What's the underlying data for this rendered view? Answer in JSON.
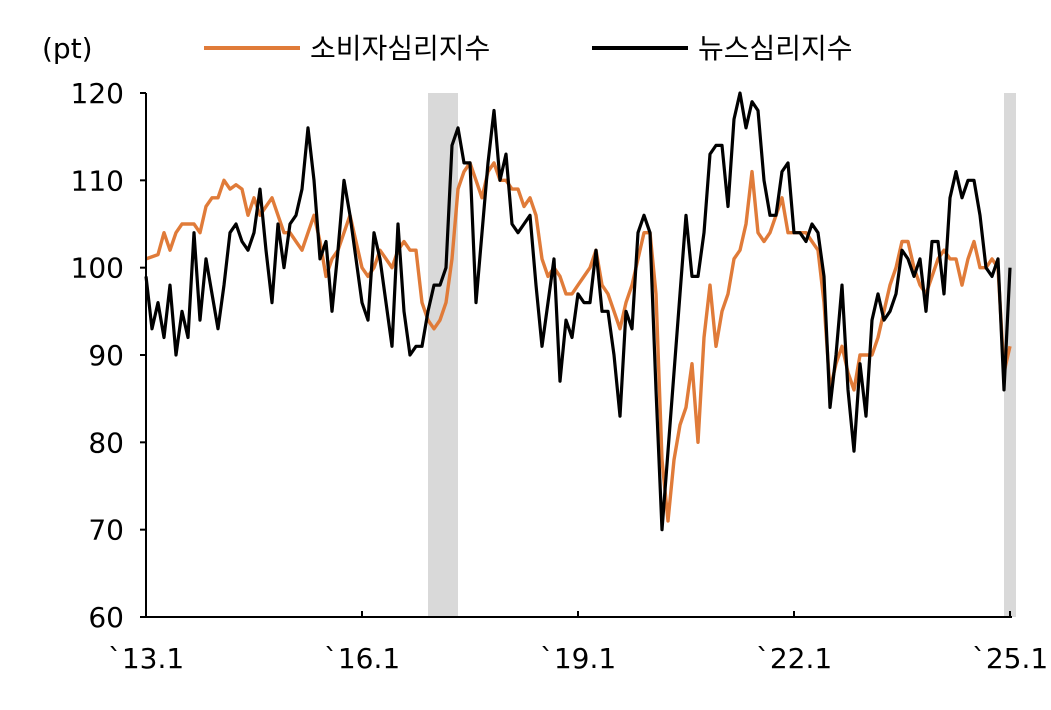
{
  "chart_data": {
    "type": "line",
    "unit_label": "(pt)",
    "ylim": [
      60,
      120
    ],
    "y_ticks": [
      60,
      70,
      80,
      90,
      100,
      110,
      120
    ],
    "x_start": "2013-01",
    "x_end": "2025-01",
    "x_ticks": [
      {
        "date": "2013-01",
        "label": "`13.1"
      },
      {
        "date": "2016-01",
        "label": "`16.1"
      },
      {
        "date": "2019-01",
        "label": "`19.1"
      },
      {
        "date": "2022-01",
        "label": "`22.1"
      },
      {
        "date": "2025-01",
        "label": "`25.1"
      }
    ],
    "shaded_periods": [
      {
        "start": "2016-12",
        "end": "2017-05"
      },
      {
        "start": "2024-12",
        "end": "2025-01"
      }
    ],
    "grid": false,
    "legend_position": "top",
    "series": [
      {
        "name": "소비자심리지수",
        "color": "#E07B39",
        "points": [
          [
            "2013-01",
            101
          ],
          [
            "2013-03",
            101.5
          ],
          [
            "2013-04",
            104
          ],
          [
            "2013-05",
            102
          ],
          [
            "2013-06",
            104
          ],
          [
            "2013-07",
            105
          ],
          [
            "2013-09",
            105
          ],
          [
            "2013-10",
            104
          ],
          [
            "2013-11",
            107
          ],
          [
            "2013-12",
            108
          ],
          [
            "2014-01",
            108
          ],
          [
            "2014-02",
            110
          ],
          [
            "2014-03",
            109
          ],
          [
            "2014-04",
            109.5
          ],
          [
            "2014-05",
            109
          ],
          [
            "2014-06",
            106
          ],
          [
            "2014-07",
            108
          ],
          [
            "2014-08",
            106
          ],
          [
            "2014-09",
            107
          ],
          [
            "2014-10",
            108
          ],
          [
            "2014-11",
            106
          ],
          [
            "2014-12",
            104
          ],
          [
            "2015-01",
            104
          ],
          [
            "2015-02",
            103
          ],
          [
            "2015-03",
            102
          ],
          [
            "2015-04",
            104
          ],
          [
            "2015-05",
            106
          ],
          [
            "2015-06",
            103
          ],
          [
            "2015-07",
            99
          ],
          [
            "2015-08",
            101
          ],
          [
            "2015-09",
            102
          ],
          [
            "2015-10",
            104
          ],
          [
            "2015-11",
            106
          ],
          [
            "2015-12",
            103
          ],
          [
            "2016-01",
            100
          ],
          [
            "2016-02",
            99
          ],
          [
            "2016-03",
            100
          ],
          [
            "2016-04",
            102
          ],
          [
            "2016-05",
            101
          ],
          [
            "2016-06",
            100
          ],
          [
            "2016-07",
            102
          ],
          [
            "2016-08",
            103
          ],
          [
            "2016-09",
            102
          ],
          [
            "2016-10",
            102
          ],
          [
            "2016-11",
            96
          ],
          [
            "2016-12",
            94
          ],
          [
            "2017-01",
            93
          ],
          [
            "2017-02",
            94
          ],
          [
            "2017-03",
            96
          ],
          [
            "2017-04",
            101
          ],
          [
            "2017-05",
            109
          ],
          [
            "2017-06",
            111
          ],
          [
            "2017-07",
            112
          ],
          [
            "2017-08",
            110
          ],
          [
            "2017-09",
            108
          ],
          [
            "2017-10",
            111
          ],
          [
            "2017-11",
            112
          ],
          [
            "2017-12",
            110
          ],
          [
            "2018-01",
            110
          ],
          [
            "2018-02",
            109
          ],
          [
            "2018-03",
            109
          ],
          [
            "2018-04",
            107
          ],
          [
            "2018-05",
            108
          ],
          [
            "2018-06",
            106
          ],
          [
            "2018-07",
            101
          ],
          [
            "2018-08",
            99
          ],
          [
            "2018-09",
            100
          ],
          [
            "2018-10",
            99
          ],
          [
            "2018-11",
            97
          ],
          [
            "2018-12",
            97
          ],
          [
            "2019-01",
            98
          ],
          [
            "2019-02",
            99
          ],
          [
            "2019-03",
            100
          ],
          [
            "2019-04",
            102
          ],
          [
            "2019-05",
            98
          ],
          [
            "2019-06",
            97
          ],
          [
            "2019-07",
            95
          ],
          [
            "2019-08",
            93
          ],
          [
            "2019-09",
            96
          ],
          [
            "2019-10",
            98
          ],
          [
            "2019-11",
            101
          ],
          [
            "2019-12",
            104
          ],
          [
            "2020-01",
            104
          ],
          [
            "2020-02",
            97
          ],
          [
            "2020-03",
            78
          ],
          [
            "2020-04",
            71
          ],
          [
            "2020-05",
            78
          ],
          [
            "2020-06",
            82
          ],
          [
            "2020-07",
            84
          ],
          [
            "2020-08",
            89
          ],
          [
            "2020-09",
            80
          ],
          [
            "2020-10",
            92
          ],
          [
            "2020-11",
            98
          ],
          [
            "2020-12",
            91
          ],
          [
            "2021-01",
            95
          ],
          [
            "2021-02",
            97
          ],
          [
            "2021-03",
            101
          ],
          [
            "2021-04",
            102
          ],
          [
            "2021-05",
            105
          ],
          [
            "2021-06",
            111
          ],
          [
            "2021-07",
            104
          ],
          [
            "2021-08",
            103
          ],
          [
            "2021-09",
            104
          ],
          [
            "2021-10",
            106
          ],
          [
            "2021-11",
            108
          ],
          [
            "2021-12",
            104
          ],
          [
            "2022-01",
            104
          ],
          [
            "2022-02",
            104
          ],
          [
            "2022-03",
            104
          ],
          [
            "2022-04",
            103
          ],
          [
            "2022-05",
            102
          ],
          [
            "2022-06",
            96
          ],
          [
            "2022-07",
            86
          ],
          [
            "2022-08",
            89
          ],
          [
            "2022-09",
            91
          ],
          [
            "2022-10",
            88
          ],
          [
            "2022-11",
            86
          ],
          [
            "2022-12",
            90
          ],
          [
            "2023-01",
            90
          ],
          [
            "2023-02",
            90
          ],
          [
            "2023-03",
            92
          ],
          [
            "2023-04",
            95
          ],
          [
            "2023-05",
            98
          ],
          [
            "2023-06",
            100
          ],
          [
            "2023-07",
            103
          ],
          [
            "2023-08",
            103
          ],
          [
            "2023-09",
            100
          ],
          [
            "2023-10",
            98
          ],
          [
            "2023-11",
            97
          ],
          [
            "2023-12",
            99
          ],
          [
            "2024-01",
            101
          ],
          [
            "2024-02",
            102
          ],
          [
            "2024-03",
            101
          ],
          [
            "2024-04",
            101
          ],
          [
            "2024-05",
            98
          ],
          [
            "2024-06",
            101
          ],
          [
            "2024-07",
            103
          ],
          [
            "2024-08",
            100
          ],
          [
            "2024-09",
            100
          ],
          [
            "2024-10",
            101
          ],
          [
            "2024-11",
            100
          ],
          [
            "2024-12",
            88
          ],
          [
            "2025-01",
            91
          ]
        ]
      },
      {
        "name": "뉴스심리지수",
        "color": "#000000",
        "points": [
          [
            "2013-01",
            99
          ],
          [
            "2013-02",
            93
          ],
          [
            "2013-03",
            96
          ],
          [
            "2013-04",
            92
          ],
          [
            "2013-05",
            98
          ],
          [
            "2013-06",
            90
          ],
          [
            "2013-07",
            95
          ],
          [
            "2013-08",
            92
          ],
          [
            "2013-09",
            104
          ],
          [
            "2013-10",
            94
          ],
          [
            "2013-11",
            101
          ],
          [
            "2013-12",
            97
          ],
          [
            "2014-01",
            93
          ],
          [
            "2014-02",
            98
          ],
          [
            "2014-03",
            104
          ],
          [
            "2014-04",
            105
          ],
          [
            "2014-05",
            103
          ],
          [
            "2014-06",
            102
          ],
          [
            "2014-07",
            104
          ],
          [
            "2014-08",
            109
          ],
          [
            "2014-09",
            102
          ],
          [
            "2014-10",
            96
          ],
          [
            "2014-11",
            105
          ],
          [
            "2014-12",
            100
          ],
          [
            "2015-01",
            105
          ],
          [
            "2015-02",
            106
          ],
          [
            "2015-03",
            109
          ],
          [
            "2015-04",
            116
          ],
          [
            "2015-05",
            110
          ],
          [
            "2015-06",
            101
          ],
          [
            "2015-07",
            103
          ],
          [
            "2015-08",
            95
          ],
          [
            "2015-09",
            102
          ],
          [
            "2015-10",
            110
          ],
          [
            "2015-11",
            106
          ],
          [
            "2015-12",
            101
          ],
          [
            "2016-01",
            96
          ],
          [
            "2016-02",
            94
          ],
          [
            "2016-03",
            104
          ],
          [
            "2016-04",
            101
          ],
          [
            "2016-05",
            96
          ],
          [
            "2016-06",
            91
          ],
          [
            "2016-07",
            105
          ],
          [
            "2016-08",
            95
          ],
          [
            "2016-09",
            90
          ],
          [
            "2016-10",
            91
          ],
          [
            "2016-11",
            91
          ],
          [
            "2016-12",
            95
          ],
          [
            "2017-01",
            98
          ],
          [
            "2017-02",
            98
          ],
          [
            "2017-03",
            100
          ],
          [
            "2017-04",
            114
          ],
          [
            "2017-05",
            116
          ],
          [
            "2017-06",
            112
          ],
          [
            "2017-07",
            112
          ],
          [
            "2017-08",
            96
          ],
          [
            "2017-09",
            104
          ],
          [
            "2017-10",
            112
          ],
          [
            "2017-11",
            118
          ],
          [
            "2017-12",
            110
          ],
          [
            "2018-01",
            113
          ],
          [
            "2018-02",
            105
          ],
          [
            "2018-03",
            104
          ],
          [
            "2018-04",
            105
          ],
          [
            "2018-05",
            106
          ],
          [
            "2018-06",
            98
          ],
          [
            "2018-07",
            91
          ],
          [
            "2018-08",
            96
          ],
          [
            "2018-09",
            101
          ],
          [
            "2018-10",
            87
          ],
          [
            "2018-11",
            94
          ],
          [
            "2018-12",
            92
          ],
          [
            "2019-01",
            97
          ],
          [
            "2019-02",
            96
          ],
          [
            "2019-03",
            96
          ],
          [
            "2019-04",
            102
          ],
          [
            "2019-05",
            95
          ],
          [
            "2019-06",
            95
          ],
          [
            "2019-07",
            90
          ],
          [
            "2019-08",
            83
          ],
          [
            "2019-09",
            95
          ],
          [
            "2019-10",
            93
          ],
          [
            "2019-11",
            104
          ],
          [
            "2019-12",
            106
          ],
          [
            "2020-01",
            104
          ],
          [
            "2020-02",
            86
          ],
          [
            "2020-03",
            70
          ],
          [
            "2020-04",
            79
          ],
          [
            "2020-05",
            88
          ],
          [
            "2020-06",
            97
          ],
          [
            "2020-07",
            106
          ],
          [
            "2020-08",
            99
          ],
          [
            "2020-09",
            99
          ],
          [
            "2020-10",
            104
          ],
          [
            "2020-11",
            113
          ],
          [
            "2020-12",
            114
          ],
          [
            "2021-01",
            114
          ],
          [
            "2021-02",
            107
          ],
          [
            "2021-03",
            117
          ],
          [
            "2021-04",
            120
          ],
          [
            "2021-05",
            116
          ],
          [
            "2021-06",
            119
          ],
          [
            "2021-07",
            118
          ],
          [
            "2021-08",
            110
          ],
          [
            "2021-09",
            106
          ],
          [
            "2021-10",
            106
          ],
          [
            "2021-11",
            111
          ],
          [
            "2021-12",
            112
          ],
          [
            "2022-01",
            104
          ],
          [
            "2022-02",
            104
          ],
          [
            "2022-03",
            103
          ],
          [
            "2022-04",
            105
          ],
          [
            "2022-05",
            104
          ],
          [
            "2022-06",
            99
          ],
          [
            "2022-07",
            84
          ],
          [
            "2022-08",
            90
          ],
          [
            "2022-09",
            98
          ],
          [
            "2022-10",
            86
          ],
          [
            "2022-11",
            79
          ],
          [
            "2022-12",
            89
          ],
          [
            "2023-01",
            83
          ],
          [
            "2023-02",
            94
          ],
          [
            "2023-03",
            97
          ],
          [
            "2023-04",
            94
          ],
          [
            "2023-05",
            95
          ],
          [
            "2023-06",
            97
          ],
          [
            "2023-07",
            102
          ],
          [
            "2023-08",
            101
          ],
          [
            "2023-09",
            99
          ],
          [
            "2023-10",
            101
          ],
          [
            "2023-11",
            95
          ],
          [
            "2023-12",
            103
          ],
          [
            "2024-01",
            103
          ],
          [
            "2024-02",
            97
          ],
          [
            "2024-03",
            108
          ],
          [
            "2024-04",
            111
          ],
          [
            "2024-05",
            108
          ],
          [
            "2024-06",
            110
          ],
          [
            "2024-07",
            110
          ],
          [
            "2024-08",
            106
          ],
          [
            "2024-09",
            100
          ],
          [
            "2024-10",
            99
          ],
          [
            "2024-11",
            101
          ],
          [
            "2024-12",
            86
          ],
          [
            "2025-01",
            100
          ]
        ]
      }
    ]
  }
}
